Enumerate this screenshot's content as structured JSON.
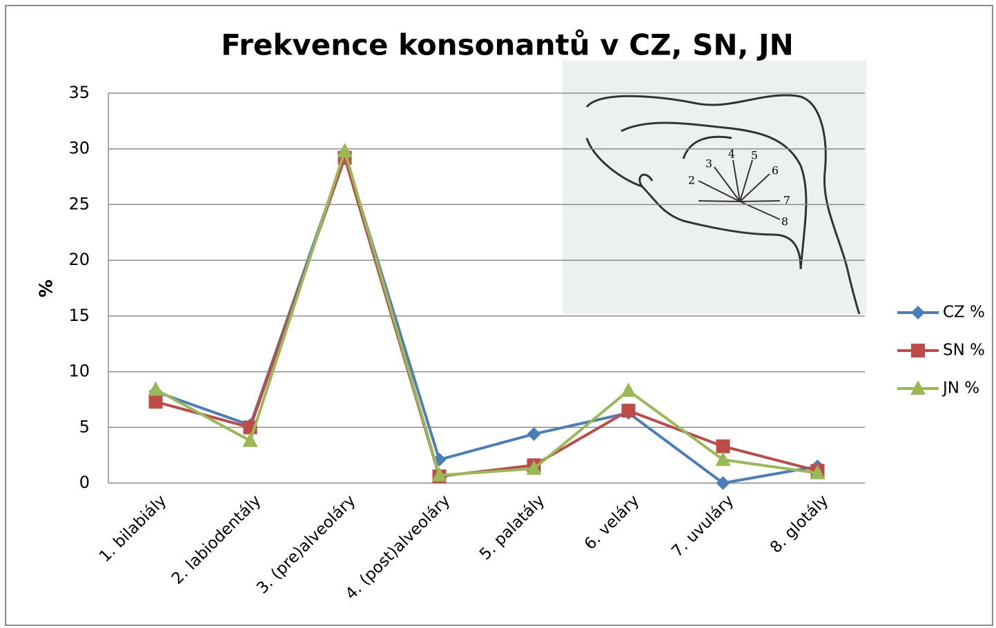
{
  "chart_data": {
    "type": "line",
    "title": "Frekvence konsonantů v CZ, SN, JN",
    "y_label": "%",
    "categories": [
      "1. bilabiály",
      "2. labiodentály",
      "3. (pre)alveoláry",
      "4. (post)alveoláry",
      "5. palatály",
      "6. veláry",
      "7. uvuláry",
      "8. glotály"
    ],
    "series": [
      {
        "name": "CZ %",
        "color": "#4a7ebb",
        "marker": "diamond",
        "values": [
          8.2,
          5.2,
          29.5,
          2.1,
          4.4,
          6.3,
          0,
          1.5
        ]
      },
      {
        "name": "SN %",
        "color": "#be4b48",
        "marker": "square",
        "values": [
          7.3,
          5.0,
          29.2,
          0.6,
          1.6,
          6.5,
          3.3,
          1.1
        ]
      },
      {
        "name": "JN %",
        "color": "#98b954",
        "marker": "triangle",
        "values": [
          8.4,
          3.8,
          29.8,
          0.7,
          1.3,
          8.3,
          2.1,
          0.9
        ]
      }
    ],
    "ylim": [
      0,
      35
    ],
    "yticks": [
      0,
      5,
      10,
      15,
      20,
      25,
      30,
      35
    ],
    "grid": true,
    "legend": "right"
  },
  "inset": {
    "labels": [
      "2",
      "3",
      "4",
      "5",
      "6",
      "7",
      "8"
    ]
  }
}
